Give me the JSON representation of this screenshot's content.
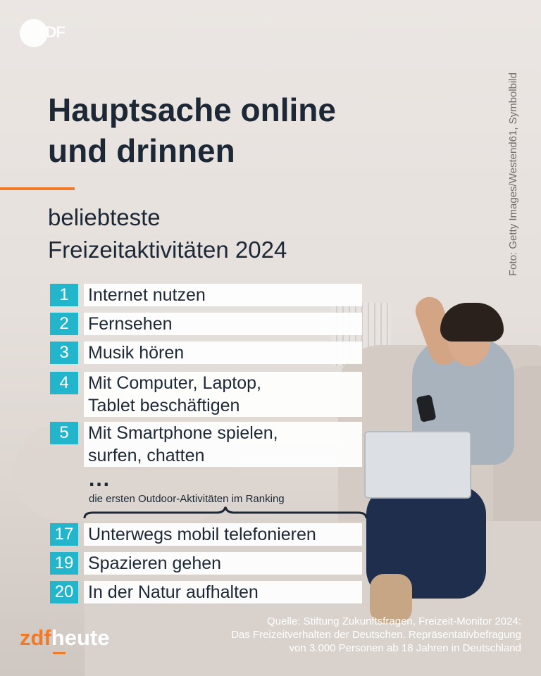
{
  "brand": {
    "top_logo": "ZDF",
    "bottom_logo_prefix": "zdf",
    "bottom_logo_suffix": "heute"
  },
  "credit": "Foto: Getty Images/Westend61, Symbolbild",
  "title": {
    "line1": "Hauptsache online",
    "line2": "und drinnen"
  },
  "subtitle": {
    "line1": "beliebteste",
    "line2": "Freizeitaktivitäten 2024"
  },
  "ranking": [
    {
      "rank": "1",
      "label": "Internet nutzen"
    },
    {
      "rank": "2",
      "label": "Fernsehen"
    },
    {
      "rank": "3",
      "label": "Musik hören"
    },
    {
      "rank": "4",
      "label": "Mit Computer, Laptop,\nTablet beschäftigen"
    },
    {
      "rank": "5",
      "label": "Mit Smartphone spielen,\nsurfen, chatten"
    },
    {
      "rank": "17",
      "label": "Unterwegs mobil telefonieren"
    },
    {
      "rank": "19",
      "label": "Spazieren gehen"
    },
    {
      "rank": "20",
      "label": "In der Natur aufhalten"
    }
  ],
  "ellipsis": "...",
  "outdoor_note": "die ersten Outdoor-Aktivitäten im Ranking",
  "source": {
    "line1": "Quelle: Stiftung Zukunftsfragen, Freizeit-Monitor 2024:",
    "line2": "Das Freizeitverhalten der Deutschen. Repräsentativbefragung",
    "line3": "von 3.000 Personen ab 18 Jahren in Deutschland"
  },
  "colors": {
    "accent_teal": "#22b5cc",
    "accent_orange": "#f07a26",
    "text_dark": "#1c2836"
  }
}
